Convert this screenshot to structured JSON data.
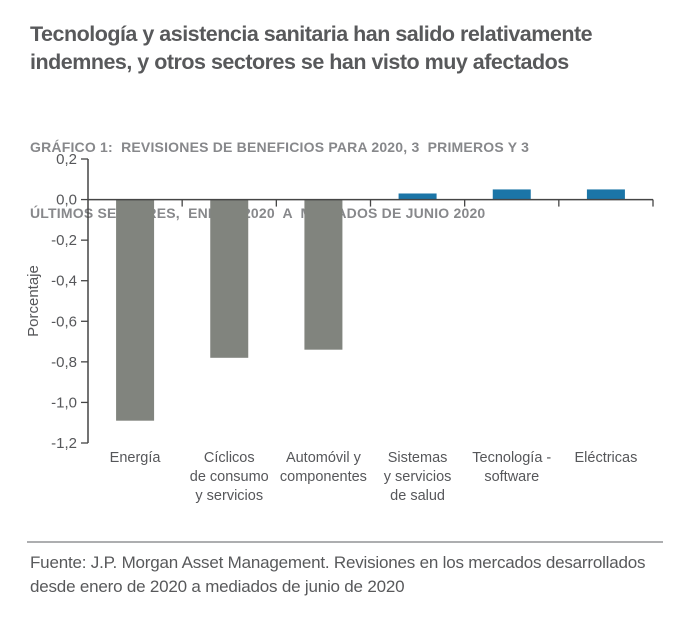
{
  "header": {
    "title_lines": [
      "Tecnología y asistencia sanitaria han salido relativamente",
      "indemnes, y otros sectores se han visto muy afectados"
    ],
    "subtitle_lines": [
      "GRÁFICO 1:  REVISIONES DE BENEFICIOS PARA 2020, 3  PRIMEROS Y 3",
      "ÚLTIMOS SECTORES,  ENERO 2020  A  MEDIADOS DE JUNIO 2020"
    ]
  },
  "chart_data": {
    "type": "bar",
    "title": "GRÁFICO 1: REVISIONES DE BENEFICIOS PARA 2020, 3 PRIMEROS Y 3 ÚLTIMOS SECTORES, ENERO 2020 A MEDIADOS DE JUNIO 2020",
    "categories": [
      "Energía",
      "Cíclicos de consumo y servicios",
      "Automóvil y componentes",
      "Sistemas y servicios de salud",
      "Tecnología - software",
      "Eléctricas"
    ],
    "category_label_lines": [
      [
        "Energía"
      ],
      [
        "Cíclicos",
        "de consumo",
        "y servicios"
      ],
      [
        "Automóvil y",
        "componentes"
      ],
      [
        "Sistemas",
        "y servicios",
        "de salud"
      ],
      [
        "Tecnología -",
        "software"
      ],
      [
        "Eléctricas"
      ]
    ],
    "values": [
      -1.09,
      -0.78,
      -0.74,
      0.03,
      0.05,
      0.05
    ],
    "xlabel": "",
    "ylabel": "Porcentaje",
    "ylim": [
      -1.2,
      0.2
    ],
    "ytick_step": 0.2,
    "ytick_labels": [
      "0,2",
      "0,0",
      "-0,2",
      "-0,4",
      "-0,6",
      "-0,8",
      "-1,0",
      "-1,2"
    ],
    "grid": false,
    "legend": "none",
    "bar_colors": {
      "negative": "#81847e",
      "positive": "#1b75a7"
    }
  },
  "footer": {
    "source_lines": [
      "Fuente: J.P. Morgan Asset Management. Revisiones en los mercados desarrollados",
      "desde enero de 2020 a mediados de junio de 2020"
    ]
  },
  "colors": {
    "title_text": "#58595b",
    "subtitle_text": "#87888b",
    "axis": "#454545",
    "tick_text": "#56575a",
    "divider": "#adaeb0"
  }
}
